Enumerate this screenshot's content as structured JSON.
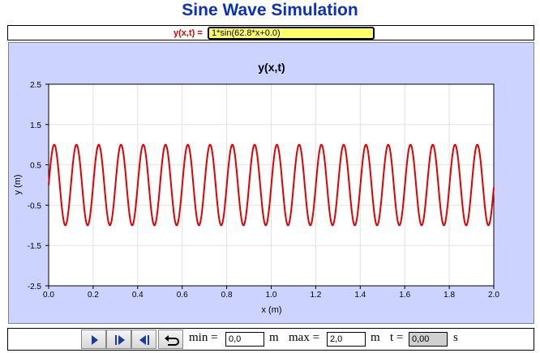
{
  "app": {
    "title": "Sine Wave Simulation"
  },
  "formula": {
    "label": "y(x,t) =",
    "value": "1*sin(62.8*x+0.0)"
  },
  "chart_data": {
    "type": "line",
    "title": "y(x,t)",
    "xlabel": "x (m)",
    "ylabel": "y (m)",
    "xlim": [
      0.0,
      2.0
    ],
    "ylim": [
      -2.5,
      2.5
    ],
    "x_ticks": [
      "0.0",
      "0.2",
      "0.4",
      "0.6",
      "0.8",
      "1.0",
      "1.2",
      "1.4",
      "1.6",
      "1.8",
      "2.0"
    ],
    "y_ticks": [
      "2.5",
      "1.5",
      "0.5",
      "-0.5",
      "-1.5",
      "-2.5"
    ],
    "grid": true,
    "series": [
      {
        "function": "y = 1*sin(62.8*x + 0.0)",
        "amplitude": 1,
        "k": 62.8,
        "phase": 0.0,
        "color": "#e00000"
      }
    ]
  },
  "controls": {
    "buttons": [
      {
        "name": "play-button",
        "icon": "play-icon"
      },
      {
        "name": "step-forward-button",
        "icon": "step-forward-icon"
      },
      {
        "name": "step-back-button",
        "icon": "step-back-icon"
      },
      {
        "name": "reset-button",
        "icon": "reset-icon"
      }
    ],
    "min_label": "min =",
    "min_value": "0,0",
    "min_unit": "m",
    "max_label": "max =",
    "max_value": "2,0",
    "max_unit": "m",
    "t_label": "t =",
    "t_value": "0,00",
    "t_unit": "s"
  }
}
